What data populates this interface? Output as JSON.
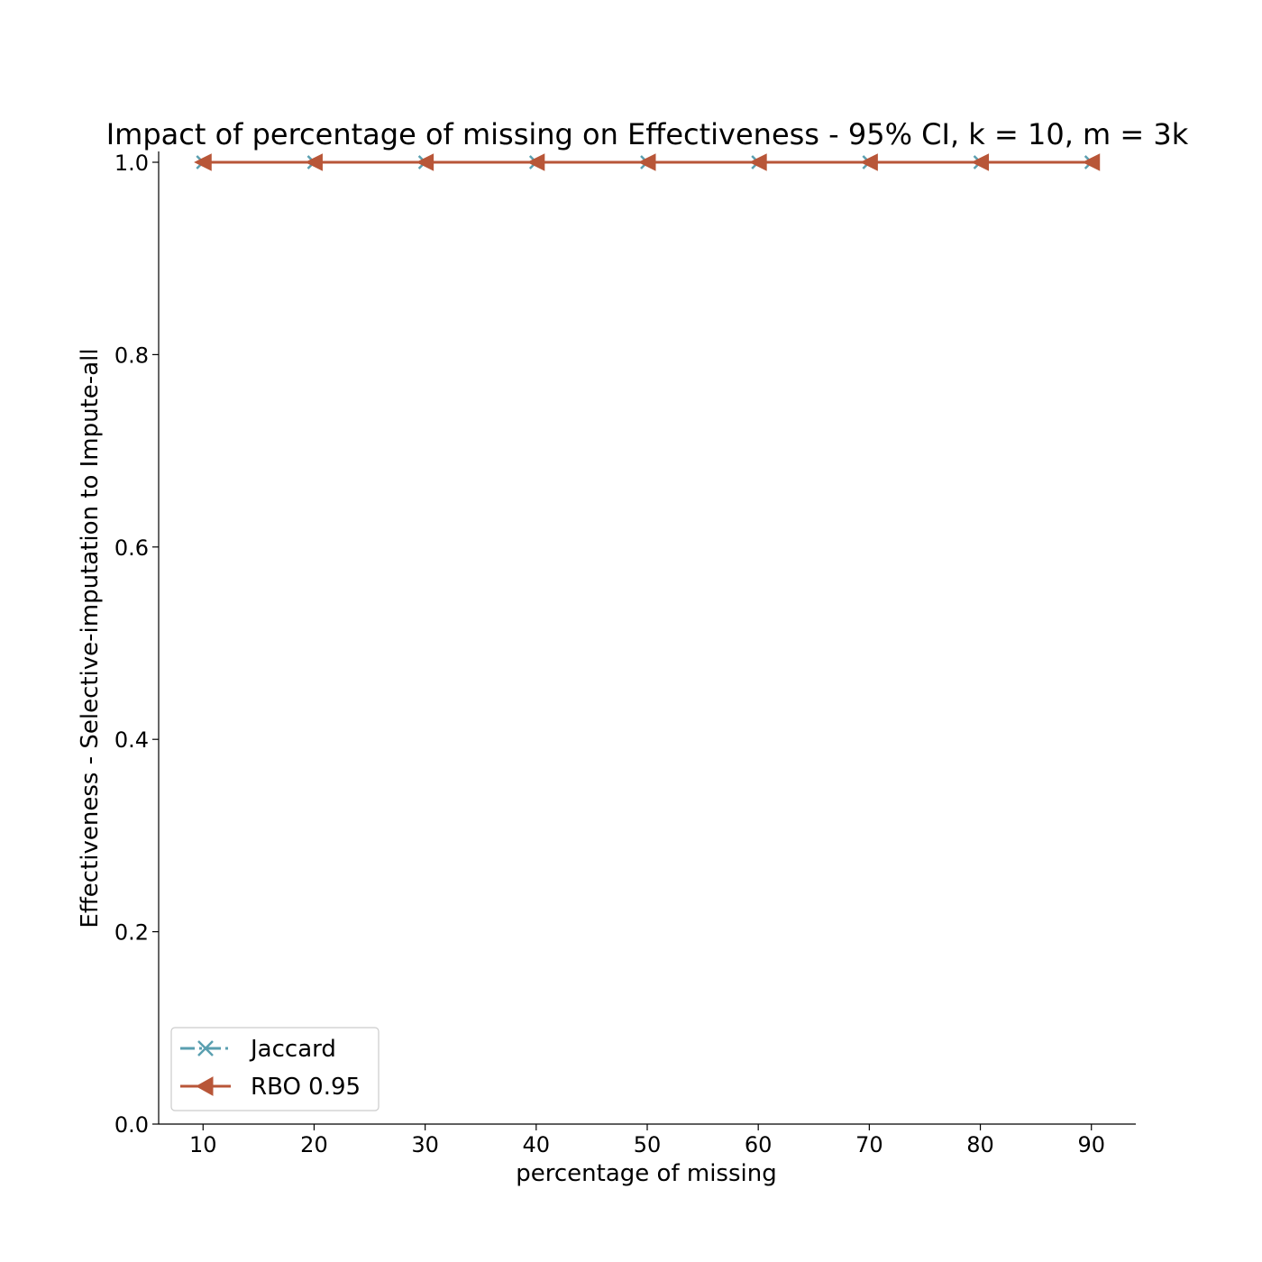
{
  "chart_data": {
    "type": "line",
    "title": "Impact of percentage of missing on Effectiveness - 95% CI, k = 10, m = 3k",
    "xlabel": "percentage of missing",
    "ylabel": "Effectiveness - Selective-imputation to Impute-all",
    "x": [
      10,
      20,
      30,
      40,
      50,
      60,
      70,
      80,
      90
    ],
    "xlim": [
      6,
      94
    ],
    "ylim": [
      0,
      1
    ],
    "xticks": [
      10,
      20,
      30,
      40,
      50,
      60,
      70,
      80,
      90
    ],
    "xtick_labels": [
      "10",
      "20",
      "30",
      "40",
      "50",
      "60",
      "70",
      "80",
      "90"
    ],
    "yticks": [
      0,
      0.2,
      0.4,
      0.6,
      0.8,
      1
    ],
    "ytick_labels": [
      "0.0",
      "0.2",
      "0.4",
      "0.6",
      "0.8",
      "1.0"
    ],
    "grid": false,
    "legend_position": "lower-left",
    "series": [
      {
        "name": "Jaccard",
        "values": [
          1,
          1,
          1,
          1,
          1,
          1,
          1,
          1,
          1
        ],
        "color": "#5a9fb0",
        "marker": "x-marker",
        "line_style": "dash-dot"
      },
      {
        "name": "RBO 0.95",
        "values": [
          1,
          1,
          1,
          1,
          1,
          1,
          1,
          1,
          1
        ],
        "color": "#b85638",
        "marker": "left-triangle-marker",
        "line_style": "solid"
      }
    ]
  }
}
